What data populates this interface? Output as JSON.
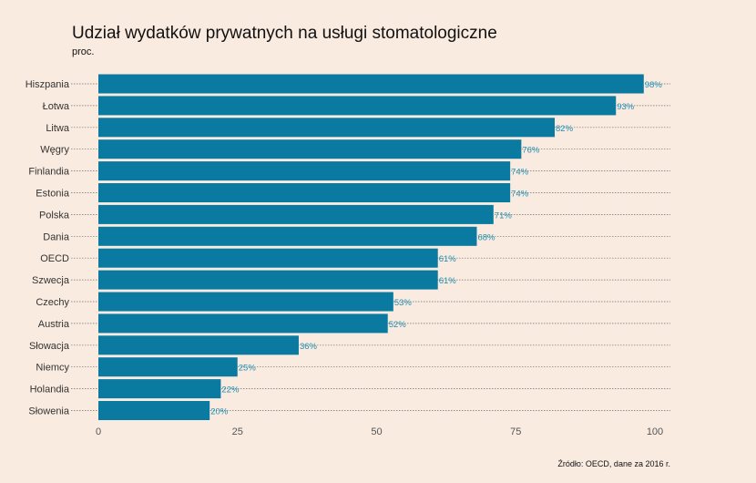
{
  "chart_data": {
    "type": "bar",
    "orientation": "horizontal",
    "title": "Udział wydatków prywatnych na usługi stomatologiczne",
    "subtitle": "proc.",
    "source": "Źródło: OECD, dane za 2016 r.",
    "categories": [
      "Hiszpania",
      "Łotwa",
      "Litwa",
      "Węgry",
      "Finlandia",
      "Estonia",
      "Polska",
      "Dania",
      "OECD",
      "Szwecja",
      "Czechy",
      "Austria",
      "Słowacja",
      "Niemcy",
      "Holandia",
      "Słowenia"
    ],
    "values": [
      98,
      93,
      82,
      76,
      74,
      74,
      71,
      68,
      61,
      61,
      53,
      52,
      36,
      25,
      22,
      20
    ],
    "value_labels": [
      "98%",
      "93%",
      "82%",
      "76%",
      "74%",
      "74%",
      "71%",
      "68%",
      "61%",
      "61%",
      "53%",
      "52%",
      "36%",
      "25%",
      "22%",
      "20%"
    ],
    "xlim": [
      0,
      100
    ],
    "xticks": [
      0,
      25,
      50,
      75,
      100
    ],
    "grid": "horizontal dotted",
    "colors": {
      "bar": "#0a7aa0",
      "value_label": "#1e8fb3",
      "background": "#f9ebe0"
    }
  }
}
